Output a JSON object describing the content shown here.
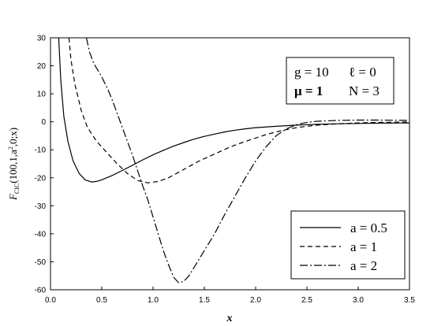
{
  "chart_data": {
    "type": "line",
    "title": "",
    "xlabel": "x",
    "ylabel_parts": {
      "F": "F",
      "sub": "CIC",
      "args": "(100,1,a",
      "sup": "2",
      "tail": ",0;x)"
    },
    "xlim": [
      0,
      3.5
    ],
    "ylim": [
      -60,
      30
    ],
    "xticks": [
      "0.0",
      "0.5",
      "1.0",
      "1.5",
      "2.0",
      "2.5",
      "3.0",
      "3.5"
    ],
    "yticks": [
      "30",
      "20",
      "10",
      "0",
      "-10",
      "-20",
      "-30",
      "-40",
      "-50",
      "-60"
    ],
    "grid": false,
    "params_box": {
      "line1_left": "g = 10",
      "line1_right": "ℓ = 0",
      "line2_left": "μ = 1",
      "line2_right": "N = 3"
    },
    "legend_position": "bottom-right",
    "series": [
      {
        "name": "a = 0.5",
        "style": "solid",
        "points": [
          [
            0.08,
            30
          ],
          [
            0.1,
            15
          ],
          [
            0.13,
            2
          ],
          [
            0.17,
            -7
          ],
          [
            0.22,
            -14
          ],
          [
            0.28,
            -18.5
          ],
          [
            0.34,
            -20.8
          ],
          [
            0.4,
            -21.5
          ],
          [
            0.45,
            -21.3
          ],
          [
            0.5,
            -20.7
          ],
          [
            0.6,
            -19.2
          ],
          [
            0.7,
            -17.4
          ],
          [
            0.8,
            -15.5
          ],
          [
            0.9,
            -13.6
          ],
          [
            1.0,
            -11.8
          ],
          [
            1.1,
            -10.2
          ],
          [
            1.2,
            -8.7
          ],
          [
            1.3,
            -7.4
          ],
          [
            1.4,
            -6.2
          ],
          [
            1.5,
            -5.2
          ],
          [
            1.6,
            -4.4
          ],
          [
            1.7,
            -3.6
          ],
          [
            1.8,
            -3.0
          ],
          [
            1.9,
            -2.5
          ],
          [
            2.0,
            -2.1
          ],
          [
            2.2,
            -1.6
          ],
          [
            2.4,
            -1.2
          ],
          [
            2.6,
            -0.9
          ],
          [
            2.8,
            -0.7
          ],
          [
            3.0,
            -0.6
          ],
          [
            3.2,
            -0.5
          ],
          [
            3.5,
            -0.4
          ]
        ]
      },
      {
        "name": "a = 1",
        "style": "dashed",
        "points": [
          [
            0.18,
            30
          ],
          [
            0.2,
            22
          ],
          [
            0.24,
            13
          ],
          [
            0.3,
            4
          ],
          [
            0.36,
            -2
          ],
          [
            0.45,
            -7
          ],
          [
            0.55,
            -11
          ],
          [
            0.65,
            -15
          ],
          [
            0.75,
            -18.5
          ],
          [
            0.85,
            -21
          ],
          [
            0.95,
            -21.8
          ],
          [
            1.05,
            -21.3
          ],
          [
            1.15,
            -20
          ],
          [
            1.3,
            -17
          ],
          [
            1.45,
            -14
          ],
          [
            1.6,
            -11.5
          ],
          [
            1.75,
            -9
          ],
          [
            1.9,
            -7
          ],
          [
            2.0,
            -5.8
          ],
          [
            2.1,
            -4.6
          ],
          [
            2.2,
            -3.6
          ],
          [
            2.3,
            -2.8
          ],
          [
            2.4,
            -2.1
          ],
          [
            2.5,
            -1.6
          ],
          [
            2.6,
            -1.2
          ],
          [
            2.8,
            -0.7
          ],
          [
            3.0,
            -0.4
          ],
          [
            3.2,
            -0.2
          ],
          [
            3.5,
            -0.1
          ]
        ]
      },
      {
        "name": "a = 2",
        "style": "dashdot",
        "points": [
          [
            0.35,
            30
          ],
          [
            0.38,
            25
          ],
          [
            0.42,
            21
          ],
          [
            0.5,
            16
          ],
          [
            0.56,
            11.5
          ],
          [
            0.6,
            8
          ],
          [
            0.65,
            3
          ],
          [
            0.7,
            -2
          ],
          [
            0.75,
            -7
          ],
          [
            0.8,
            -12
          ],
          [
            0.85,
            -17.5
          ],
          [
            0.9,
            -23
          ],
          [
            0.95,
            -28
          ],
          [
            1.0,
            -34
          ],
          [
            1.05,
            -40
          ],
          [
            1.1,
            -46
          ],
          [
            1.15,
            -51
          ],
          [
            1.2,
            -55.5
          ],
          [
            1.25,
            -57.5
          ],
          [
            1.3,
            -57
          ],
          [
            1.35,
            -55
          ],
          [
            1.4,
            -52
          ],
          [
            1.5,
            -46
          ],
          [
            1.6,
            -40
          ],
          [
            1.7,
            -33
          ],
          [
            1.8,
            -26.5
          ],
          [
            1.9,
            -20
          ],
          [
            2.0,
            -14
          ],
          [
            2.1,
            -9
          ],
          [
            2.2,
            -5
          ],
          [
            2.3,
            -2.5
          ],
          [
            2.4,
            -1
          ],
          [
            2.5,
            -0.2
          ],
          [
            2.6,
            0.2
          ],
          [
            2.8,
            0.5
          ],
          [
            3.0,
            0.6
          ],
          [
            3.2,
            0.6
          ],
          [
            3.5,
            0.5
          ]
        ]
      }
    ]
  }
}
